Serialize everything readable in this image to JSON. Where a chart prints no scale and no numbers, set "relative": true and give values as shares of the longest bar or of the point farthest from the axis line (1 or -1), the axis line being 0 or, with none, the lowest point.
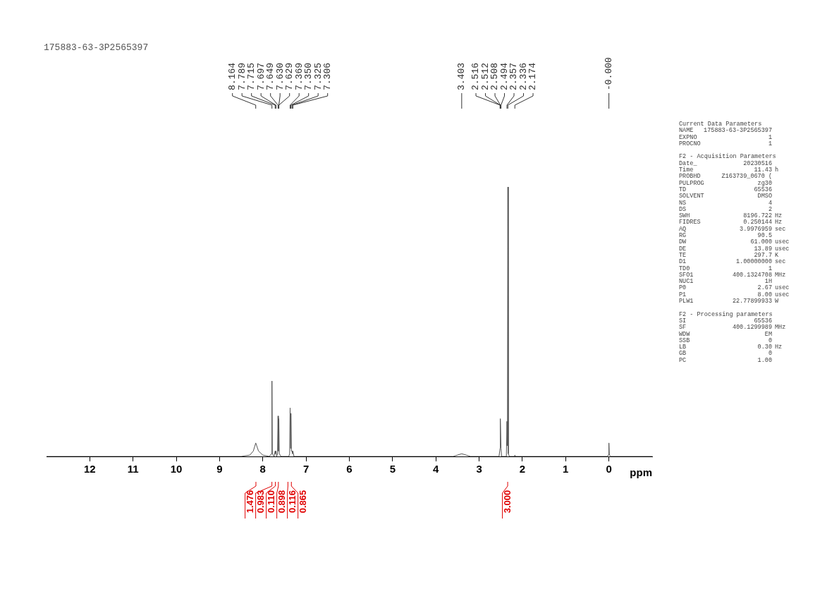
{
  "chart_data": {
    "type": "line",
    "title": "175883-63-3P2565397",
    "xlabel": "ppm",
    "relative": true,
    "xlim": [
      13,
      -1
    ],
    "xticks": [
      12,
      11,
      10,
      9,
      8,
      7,
      6,
      5,
      4,
      3,
      2,
      1,
      0
    ],
    "series": [
      {
        "color": "#555555",
        "x": [
          13,
          8.5,
          8.3,
          8.22,
          8.164,
          8.1,
          8.0,
          7.85,
          7.8,
          7.789,
          7.78,
          7.74,
          7.715,
          7.705,
          7.697,
          7.68,
          7.66,
          7.649,
          7.64,
          7.63,
          7.62,
          7.58,
          7.4,
          7.38,
          7.369,
          7.36,
          7.35,
          7.34,
          7.325,
          7.315,
          7.306,
          7.28,
          3.6,
          3.5,
          3.403,
          3.3,
          3.2,
          2.54,
          2.516,
          2.512,
          2.508,
          2.494,
          2.48,
          2.37,
          2.357,
          2.346,
          2.336,
          2.325,
          2.3,
          2.18,
          2.174,
          2.16,
          0.05,
          0.01,
          0,
          -0.01,
          -0.05,
          -1
        ],
        "values": [
          0,
          0,
          0.005,
          0.02,
          0.05,
          0.02,
          0.005,
          0,
          0.01,
          0.28,
          0.01,
          0,
          0.02,
          0.01,
          0.02,
          0,
          0.01,
          0.15,
          0.02,
          0.14,
          0.01,
          0,
          0,
          0.01,
          0.18,
          0.03,
          0.16,
          0.02,
          0.02,
          0.01,
          0.02,
          0,
          0,
          0.005,
          0.01,
          0.005,
          0,
          0,
          0.03,
          0.03,
          0.14,
          0.03,
          0,
          0,
          0.13,
          0.04,
          1,
          0.01,
          0,
          0,
          0.005,
          0,
          0,
          0.005,
          0.05,
          0.005,
          0,
          0
        ]
      }
    ],
    "annotations": [
      {
        "text": "8.164",
        "x": 8.164
      },
      {
        "text": "7.789",
        "x": 7.789
      },
      {
        "text": "7.715",
        "x": 7.715
      },
      {
        "text": "7.697",
        "x": 7.697
      },
      {
        "text": "7.649",
        "x": 7.649
      },
      {
        "text": "7.630",
        "x": 7.63
      },
      {
        "text": "7.629",
        "x": 7.629
      },
      {
        "text": "7.369",
        "x": 7.369
      },
      {
        "text": "7.350",
        "x": 7.35
      },
      {
        "text": "7.325",
        "x": 7.325
      },
      {
        "text": "7.306",
        "x": 7.306
      },
      {
        "text": "3.403",
        "x": 3.403
      },
      {
        "text": "2.516",
        "x": 2.516
      },
      {
        "text": "2.512",
        "x": 2.512
      },
      {
        "text": "2.508",
        "x": 2.508
      },
      {
        "text": "2.494",
        "x": 2.494
      },
      {
        "text": "2.357",
        "x": 2.357
      },
      {
        "text": "2.336",
        "x": 2.336
      },
      {
        "text": "2.174",
        "x": 2.174
      },
      {
        "text": "-0.000",
        "x": 0
      },
      {
        "text": "1.476",
        "x": 8.16
      },
      {
        "text": "0.983",
        "x": 7.79
      },
      {
        "text": "0.110",
        "x": 7.71
      },
      {
        "text": "0.898",
        "x": 7.64
      },
      {
        "text": "0.116",
        "x": 7.42
      },
      {
        "text": "0.865",
        "x": 7.34
      },
      {
        "text": "3.000",
        "x": 2.34
      },
      "Current Data Parameters",
      "NAME\t175883-63-3P2565397",
      "EXPNO\t1",
      "PROCNO\t1",
      "F2 - Acquisition Parameters",
      "Date_\t20230516",
      "Time\t11.43\th",
      "PROBHD\tZ163739_0670 (",
      "PULPROG\tzg30",
      "TD\t65536",
      "SOLVENT\tDMSO",
      "NS\t4",
      "DS\t2",
      "SWH\t8196.722\tHz",
      "FIDRES\t0.250144\tHz",
      "AQ\t3.9976959\tsec",
      "RG\t90.5",
      "DW\t61.000\tusec",
      "DE\t13.89\tusec",
      "TE\t297.7\tK",
      "D1\t1.00000000\tsec",
      "TD0\t1",
      "SFO1\t400.1324708\tMHz",
      "NUC1\t1H",
      "P0\t2.67\tusec",
      "P1\t8.00\tusec",
      "PLW1\t22.77899933\tW",
      "F2 - Processing parameters",
      "SI\t65536",
      "SF\t400.1299989\tMHz",
      "WDW\tEM",
      "SSB\t0",
      "LB\t0.30\tHz",
      "GB\t0",
      "PC\t1.00"
    ]
  }
}
